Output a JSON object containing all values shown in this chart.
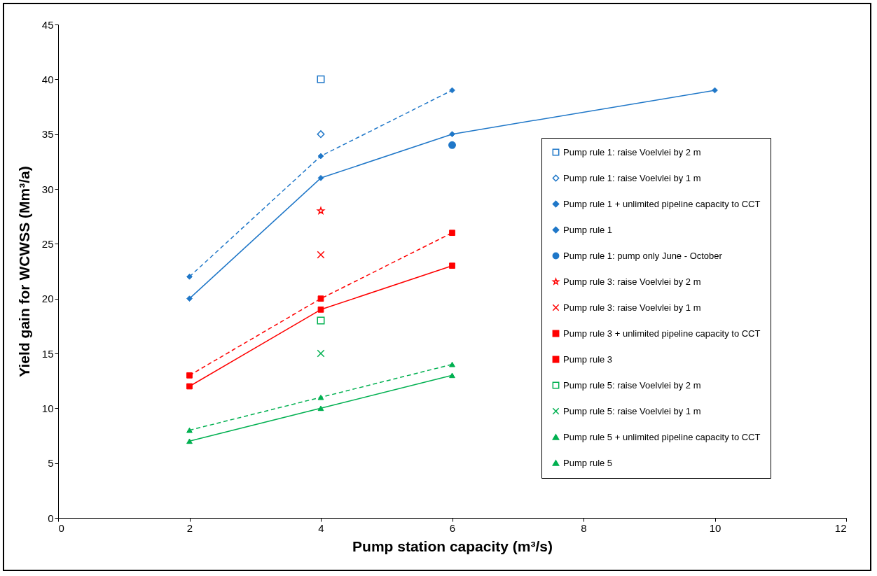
{
  "chart_data": {
    "type": "line",
    "xlabel": "Pump station capacity (m³/s)",
    "ylabel": "Yield gain for WCWSS (Mm³/a)",
    "xlim": [
      0,
      12
    ],
    "xticks": [
      0,
      2,
      4,
      6,
      8,
      10,
      12
    ],
    "ylim": [
      0,
      45
    ],
    "yticks": [
      0,
      5,
      10,
      15,
      20,
      25,
      30,
      35,
      40,
      45
    ],
    "grid": false,
    "legend": "right",
    "series": [
      {
        "name": "Pump rule 1: raise Voelvlei by 2 m",
        "type": "scatter",
        "marker": "square",
        "color": "#1f77c8",
        "x": [
          4
        ],
        "values": [
          40
        ]
      },
      {
        "name": "Pump rule 1: raise Voelvlei by 1 m",
        "type": "scatter",
        "marker": "diamond",
        "color": "#1f77c8",
        "x": [
          4
        ],
        "values": [
          35
        ]
      },
      {
        "name": "Pump rule 1 + unlimited pipeline capacity to CCT",
        "marker": "diamond",
        "line_style": "dashed",
        "color": "#1f77c8",
        "x": [
          2,
          4,
          6
        ],
        "values": [
          22,
          33,
          39
        ]
      },
      {
        "name": "Pump rule 1",
        "marker": "diamond",
        "line_style": "solid",
        "color": "#1f77c8",
        "x": [
          2,
          4,
          6,
          10
        ],
        "values": [
          20,
          31,
          35,
          39
        ]
      },
      {
        "name": "Pump rule 1: pump only June - October",
        "type": "scatter",
        "marker": "circle",
        "color": "#1f77c8",
        "x": [
          6
        ],
        "values": [
          34
        ]
      },
      {
        "name": "Pump rule 3: raise Voelvlei by 2 m",
        "type": "scatter",
        "marker": "star",
        "color": "#ff0000",
        "x": [
          4
        ],
        "values": [
          28
        ]
      },
      {
        "name": "Pump rule 3: raise Voelvlei by 1 m",
        "type": "scatter",
        "marker": "cross",
        "color": "#ff0000",
        "x": [
          4
        ],
        "values": [
          24
        ]
      },
      {
        "name": "Pump rule 3 + unlimited pipeline capacity to CCT",
        "marker": "square",
        "line_style": "dashed",
        "color": "#ff0000",
        "x": [
          2,
          4,
          6
        ],
        "values": [
          13,
          20,
          26
        ]
      },
      {
        "name": "Pump rule 3",
        "marker": "square",
        "line_style": "solid",
        "color": "#ff0000",
        "x": [
          2,
          4,
          6
        ],
        "values": [
          12,
          19,
          23
        ]
      },
      {
        "name": "Pump rule 5: raise Voelvlei by 2 m",
        "type": "scatter",
        "marker": "square",
        "color": "#00b050",
        "x": [
          4
        ],
        "values": [
          18
        ]
      },
      {
        "name": "Pump rule 5: raise Voelvlei by 1 m",
        "type": "scatter",
        "marker": "cross",
        "color": "#00b050",
        "x": [
          4
        ],
        "values": [
          15
        ]
      },
      {
        "name": "Pump rule 5 + unlimited pipeline capacity to CCT",
        "marker": "triangle",
        "line_style": "dashed",
        "color": "#00b050",
        "x": [
          2,
          4,
          6
        ],
        "values": [
          8,
          11,
          14
        ]
      },
      {
        "name": "Pump rule 5",
        "marker": "triangle",
        "line_style": "solid",
        "color": "#00b050",
        "x": [
          2,
          4,
          6
        ],
        "values": [
          7,
          10,
          13
        ]
      }
    ]
  }
}
